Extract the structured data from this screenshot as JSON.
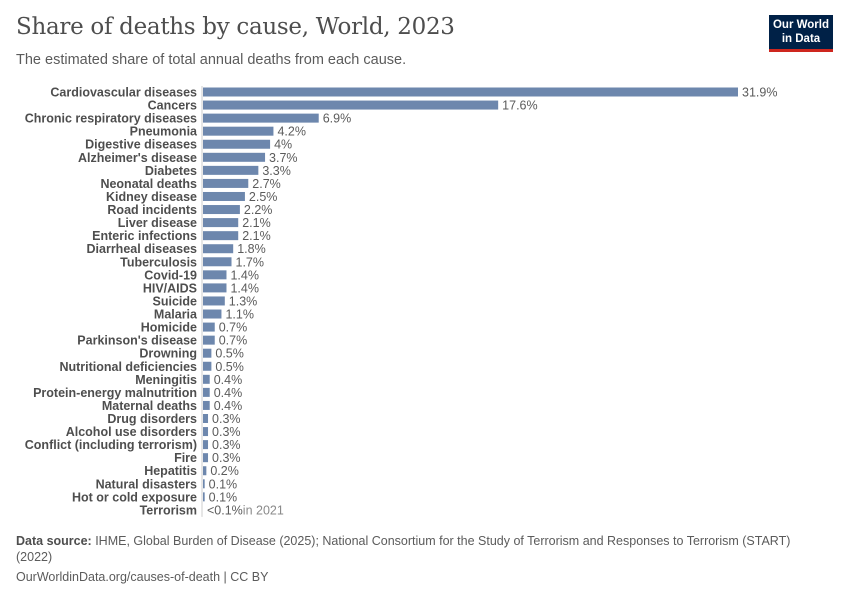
{
  "header": {
    "title": "Share of deaths by cause, World, 2023",
    "subtitle": "The estimated share of total annual deaths from each cause.",
    "logo_line1": "Our World",
    "logo_line2": "in Data"
  },
  "chart_data": {
    "type": "bar",
    "orientation": "horizontal",
    "bar_color": "#6d87ad",
    "categories": [
      "Cardiovascular diseases",
      "Cancers",
      "Chronic respiratory diseases",
      "Pneumonia",
      "Digestive diseases",
      "Alzheimer's disease",
      "Diabetes",
      "Neonatal deaths",
      "Kidney disease",
      "Road incidents",
      "Liver disease",
      "Enteric infections",
      "Diarrheal diseases",
      "Tuberculosis",
      "Covid-19",
      "HIV/AIDS",
      "Suicide",
      "Malaria",
      "Homicide",
      "Parkinson's disease",
      "Drowning",
      "Nutritional deficiencies",
      "Meningitis",
      "Protein-energy malnutrition",
      "Maternal deaths",
      "Drug disorders",
      "Alcohol use disorders",
      "Conflict (including terrorism)",
      "Fire",
      "Hepatitis",
      "Natural disasters",
      "Hot or cold exposure",
      "Terrorism"
    ],
    "values": [
      31.9,
      17.6,
      6.9,
      4.2,
      4,
      3.7,
      3.3,
      2.7,
      2.5,
      2.2,
      2.1,
      2.1,
      1.8,
      1.7,
      1.4,
      1.4,
      1.3,
      1.1,
      0.7,
      0.7,
      0.5,
      0.5,
      0.4,
      0.4,
      0.4,
      0.3,
      0.3,
      0.3,
      0.3,
      0.2,
      0.1,
      0.1,
      0.05
    ],
    "value_labels": [
      "31.9%",
      "17.6%",
      "6.9%",
      "4.2%",
      "4%",
      "3.7%",
      "3.3%",
      "2.7%",
      "2.5%",
      "2.2%",
      "2.1%",
      "2.1%",
      "1.8%",
      "1.7%",
      "1.4%",
      "1.4%",
      "1.3%",
      "1.1%",
      "0.7%",
      "0.7%",
      "0.5%",
      "0.5%",
      "0.4%",
      "0.4%",
      "0.4%",
      "0.3%",
      "0.3%",
      "0.3%",
      "0.3%",
      "0.2%",
      "0.1%",
      "0.1%",
      "<0.1%"
    ],
    "annotations": {
      "32": "in 2021"
    },
    "unit": "%"
  },
  "footer": {
    "source_label": "Data source:",
    "source_text": " IHME, Global Burden of Disease (2025); National Consortium for the Study of Terrorism and Responses to Terrorism (START) (2022)",
    "url": "OurWorldinData.org/causes-of-death | CC BY"
  }
}
